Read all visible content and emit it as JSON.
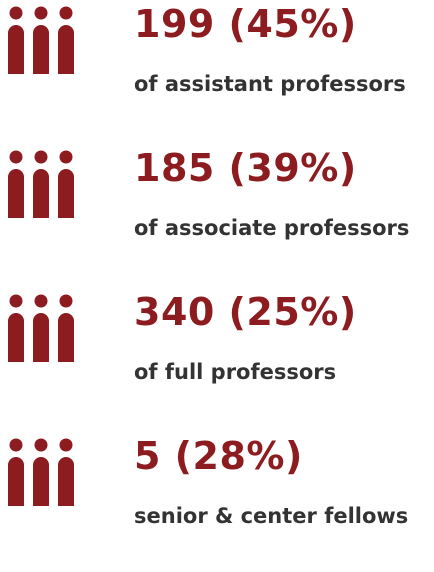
{
  "items": [
    {
      "stat": "199 (45%)",
      "label": "of assistant professors"
    },
    {
      "stat": "185 (39%)",
      "label": "of associate professors"
    },
    {
      "stat": "340 (25%)",
      "label": "of full professors"
    },
    {
      "stat": "5 (28%)",
      "label": "senior & center fellows"
    }
  ]
}
